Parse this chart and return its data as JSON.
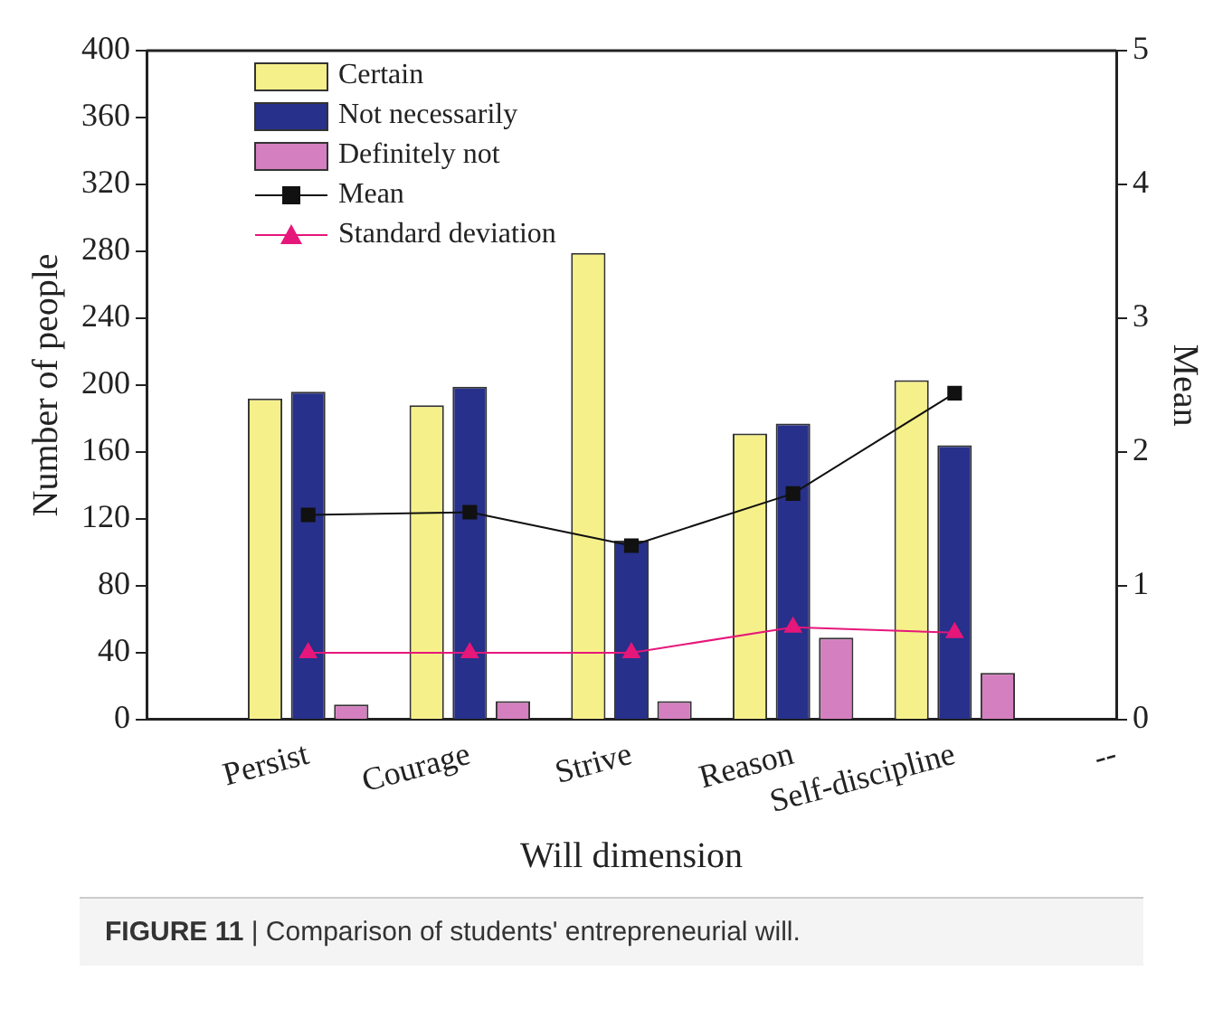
{
  "chart_data": {
    "type": "bar",
    "xlabel": "Will dimension",
    "ylabel": "Number of people",
    "y2label": "Mean",
    "categories": [
      null,
      "Persist",
      "Courage",
      "Strive",
      "Reason",
      "Self-discipline",
      "--"
    ],
    "series": [
      {
        "name": "Certain",
        "color": "#f5f08a",
        "values": [
          null,
          192,
          188,
          279,
          171,
          203,
          null
        ]
      },
      {
        "name": "Not necessarily",
        "color": "#27308a",
        "values": [
          null,
          196,
          199,
          107,
          177,
          164,
          null
        ]
      },
      {
        "name": "Definitely not",
        "color": "#d47fbf",
        "values": [
          null,
          9,
          11,
          11,
          49,
          28,
          null
        ]
      },
      {
        "name": "Mean",
        "type": "line",
        "axis": "y2",
        "marker": "square",
        "color": "#111111",
        "values": [
          null,
          1.53,
          1.55,
          1.3,
          1.69,
          2.44,
          null
        ]
      },
      {
        "name": "Standard deviation",
        "type": "line",
        "axis": "y2",
        "marker": "triangle",
        "color": "#e6177a",
        "values": [
          null,
          0.5,
          0.5,
          0.5,
          0.69,
          0.65,
          null
        ]
      }
    ],
    "ylim": [
      0,
      400
    ],
    "yticks": [
      0,
      40,
      80,
      120,
      160,
      200,
      240,
      280,
      320,
      360,
      400
    ],
    "y2lim": [
      0,
      5
    ],
    "y2ticks": [
      0,
      1,
      2,
      3,
      4,
      5
    ],
    "legend": "top left",
    "grid": false,
    "annotations": [
      "FIGURE 11 | Comparison of students' entrepreneurial will."
    ]
  }
}
